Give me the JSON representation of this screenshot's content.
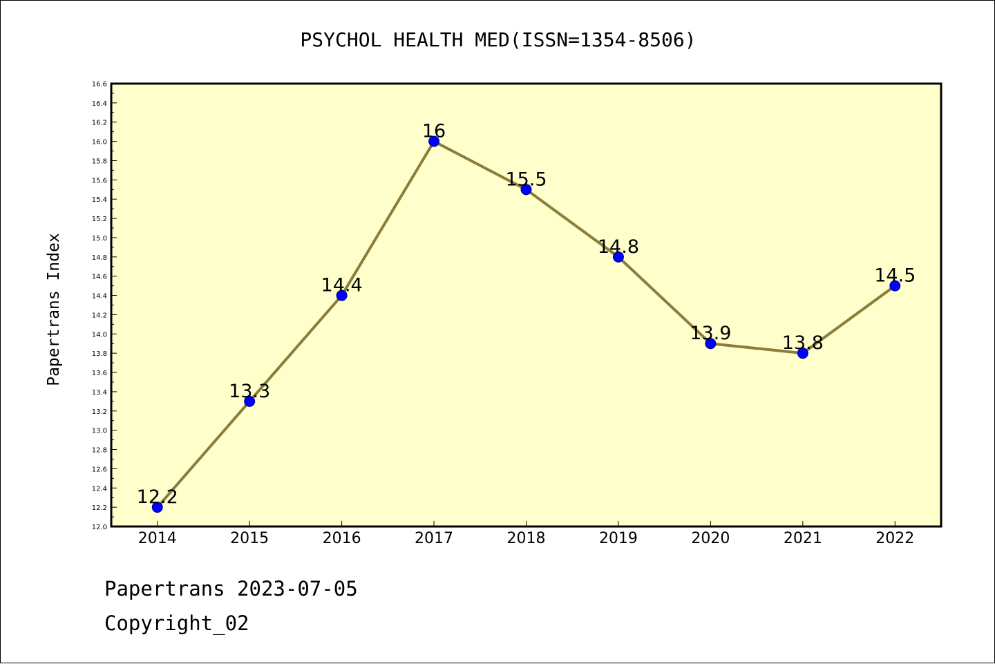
{
  "footer": {
    "date_line": "Papertrans 2023-07-05",
    "copyright_line": "Copyright_02"
  },
  "colors": {
    "plot_bg": "#ffffcc",
    "line": "#8b7d3a",
    "marker": "#0000ff",
    "axis": "#000000"
  },
  "chart_data": {
    "type": "line",
    "title": "PSYCHOL HEALTH MED(ISSN=1354-8506)",
    "xlabel": "",
    "ylabel": "Papertrans Index",
    "categories": [
      "2014",
      "2015",
      "2016",
      "2017",
      "2018",
      "2019",
      "2020",
      "2021",
      "2022"
    ],
    "series": [
      {
        "values": [
          12.2,
          13.3,
          14.4,
          16.0,
          15.5,
          14.8,
          13.9,
          13.8,
          14.5
        ],
        "labels": [
          "12.2",
          "13.3",
          "14.4",
          "16",
          "15.5",
          "14.8",
          "13.9",
          "13.8",
          "14.5"
        ]
      }
    ],
    "ylim": [
      12.0,
      16.6
    ],
    "ytick_step": 0.2,
    "yminor_step": 0.1,
    "grid": false,
    "legend": "none"
  }
}
